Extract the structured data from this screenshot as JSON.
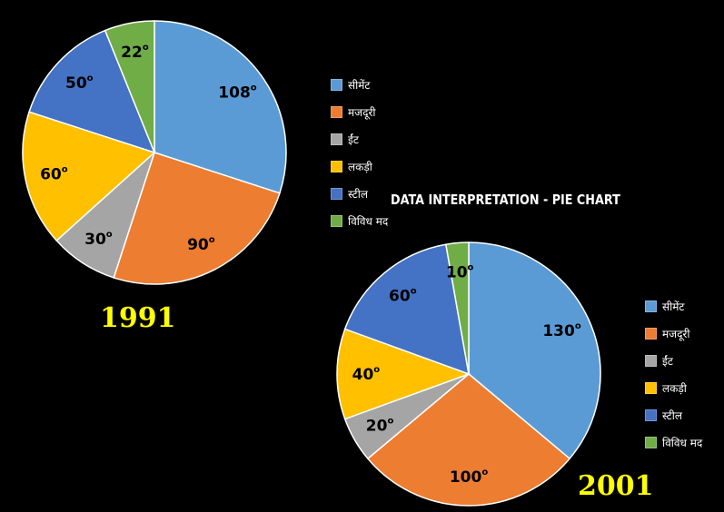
{
  "title": "DATA INTERPRETATION - PIE CHART",
  "degree_symbol": "o",
  "chart_data": [
    {
      "type": "pie",
      "title": "1991",
      "unit": "degrees",
      "labels": [
        "सीमेंट",
        "मजदूरी",
        "ईंट",
        "लकड़ी",
        "स्टील",
        "विविध मद"
      ],
      "values": [
        108,
        90,
        30,
        60,
        50,
        22
      ],
      "colors": [
        "#5b9bd5",
        "#ed7d31",
        "#a5a5a5",
        "#ffc000",
        "#4472c4",
        "#70ad47"
      ],
      "legend_position": "right"
    },
    {
      "type": "pie",
      "title": "2001",
      "unit": "degrees",
      "labels": [
        "सीमेंट",
        "मजदूरी",
        "ईंट",
        "लकड़ी",
        "स्टील",
        "विविध मद"
      ],
      "values": [
        130,
        100,
        20,
        40,
        60,
        10
      ],
      "colors": [
        "#5b9bd5",
        "#ed7d31",
        "#a5a5a5",
        "#ffc000",
        "#4472c4",
        "#70ad47"
      ],
      "legend_position": "right"
    }
  ]
}
